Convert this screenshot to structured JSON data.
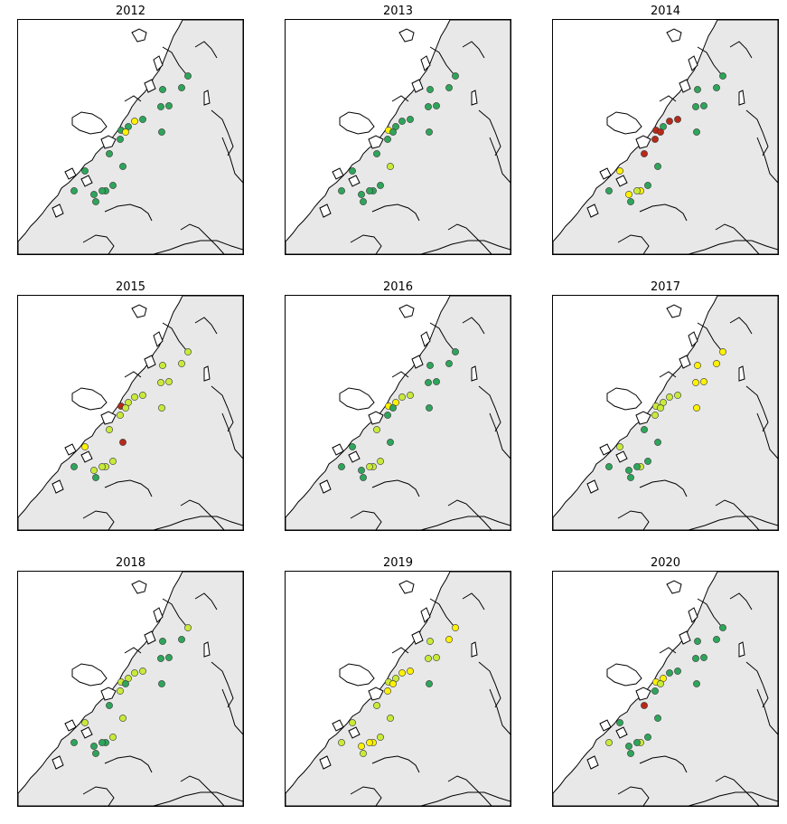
{
  "colors": {
    "green": "#2ea55a",
    "light_green": "#c8ea3a",
    "yellow": "#fff200",
    "red": "#b52a1a",
    "land": "#e8e8e8",
    "sea": "#ffffff"
  },
  "panels": [
    {
      "year": "2012",
      "sites": [
        "green",
        "green",
        "green",
        "green",
        "green",
        "green",
        "green",
        "green",
        "yellow",
        "yellow",
        "green",
        "green",
        "green",
        "green",
        "green",
        "green",
        "green",
        "green",
        "green",
        "green",
        "green"
      ]
    },
    {
      "year": "2013",
      "sites": [
        "green",
        "green",
        "green",
        "green",
        "green",
        "green",
        "yellow",
        "green",
        "green",
        "green",
        "green",
        "green",
        "green",
        "light_green",
        "green",
        "green",
        "green",
        "green",
        "green",
        "green",
        "green"
      ]
    },
    {
      "year": "2014",
      "sites": [
        "green",
        "green",
        "green",
        "green",
        "green",
        "green",
        "red",
        "red",
        "red",
        "red",
        "red",
        "green",
        "red",
        "green",
        "yellow",
        "green",
        "yellow",
        "light_green",
        "yellow",
        "green",
        "green"
      ]
    },
    {
      "year": "2015",
      "sites": [
        "light_green",
        "light_green",
        "light_green",
        "light_green",
        "light_green",
        "light_green",
        "red",
        "light_green",
        "light_green",
        "light_green",
        "light_green",
        "light_green",
        "light_green",
        "red",
        "yellow",
        "light_green",
        "light_green",
        "light_green",
        "light_green",
        "green",
        "green"
      ]
    },
    {
      "year": "2016",
      "sites": [
        "green",
        "green",
        "green",
        "green",
        "green",
        "yellow",
        "yellow",
        "light_green",
        "light_green",
        "green",
        "green",
        "green",
        "light_green",
        "green",
        "green",
        "light_green",
        "light_green",
        "light_green",
        "green",
        "green",
        "green"
      ]
    },
    {
      "year": "2017",
      "sites": [
        "yellow",
        "yellow",
        "yellow",
        "yellow",
        "yellow",
        "light_green",
        "light_green",
        "light_green",
        "light_green",
        "light_green",
        "light_green",
        "yellow",
        "green",
        "green",
        "light_green",
        "green",
        "light_green",
        "green",
        "green",
        "green",
        "green"
      ]
    },
    {
      "year": "2018",
      "sites": [
        "light_green",
        "green",
        "green",
        "green",
        "green",
        "light_green",
        "light_green",
        "light_green",
        "light_green",
        "green",
        "light_green",
        "green",
        "green",
        "light_green",
        "light_green",
        "light_green",
        "green",
        "green",
        "green",
        "green",
        "green"
      ]
    },
    {
      "year": "2019",
      "sites": [
        "yellow",
        "yellow",
        "light_green",
        "light_green",
        "light_green",
        "light_green",
        "light_green",
        "yellow",
        "yellow",
        "yellow",
        "yellow",
        "green",
        "light_green",
        "light_green",
        "light_green",
        "light_green",
        "yellow",
        "yellow",
        "yellow",
        "light_green",
        "light_green"
      ]
    },
    {
      "year": "2020",
      "sites": [
        "green",
        "green",
        "green",
        "green",
        "green",
        "yellow",
        "yellow",
        "green",
        "green",
        "light_green",
        "green",
        "green",
        "red",
        "green",
        "green",
        "green",
        "light_green",
        "green",
        "green",
        "light_green",
        "green"
      ]
    }
  ]
}
